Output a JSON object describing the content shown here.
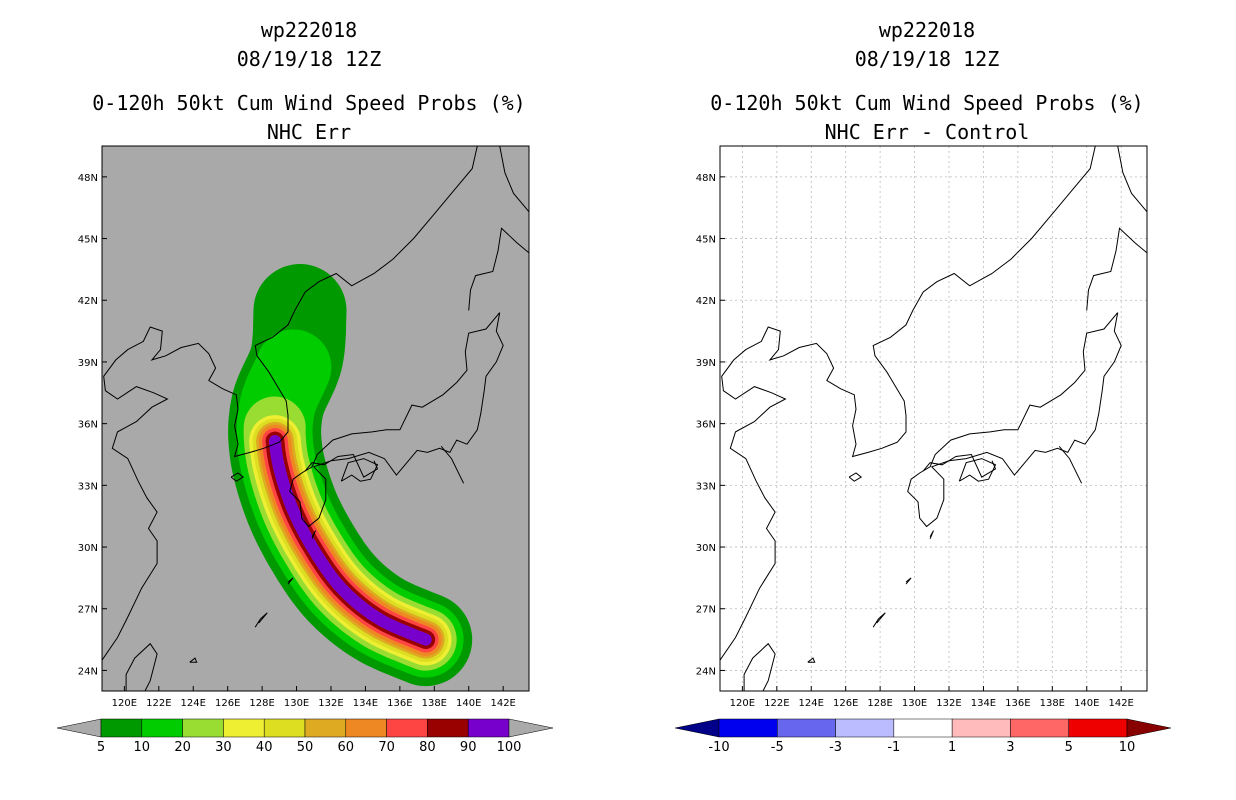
{
  "colors": {
    "land_bg": "#a9a9a9",
    "coast": "#000000",
    "prob_fills": [
      "#009900",
      "#00cc00",
      "#99dd33",
      "#eeee33",
      "#dddd22",
      "#ddaa22",
      "#ee8822",
      "#ff4444",
      "#990000",
      "#7700cc"
    ],
    "diff_fills": [
      "#000088",
      "#0000ee",
      "#6666ee",
      "#bbbbff",
      "#ffffff",
      "#ffbbbb",
      "#ff6666",
      "#ee0000",
      "#880000"
    ]
  },
  "chart_data": [
    {
      "type": "heatmap",
      "title_lines": [
        "wp222018",
        "08/19/18 12Z",
        "0-120h 50kt Cum Wind Speed Probs (%)",
        "NHC Err"
      ],
      "x_ticks": [
        "120E",
        "122E",
        "124E",
        "126E",
        "128E",
        "130E",
        "132E",
        "134E",
        "136E",
        "138E",
        "140E",
        "142E"
      ],
      "y_ticks": [
        "48N",
        "45N",
        "42N",
        "39N",
        "36N",
        "33N",
        "30N",
        "27N",
        "24N"
      ],
      "x_range_deg": [
        118.7,
        143.5
      ],
      "y_range_deg": [
        23.0,
        49.5
      ],
      "colorbar": {
        "labels": [
          "5",
          "10",
          "20",
          "30",
          "40",
          "50",
          "60",
          "70",
          "80",
          "90",
          "100"
        ],
        "levels": [
          5,
          10,
          20,
          30,
          40,
          50,
          60,
          70,
          80,
          90,
          100
        ]
      },
      "track_axis": [
        [
          130.2,
          41.5
        ],
        [
          130.0,
          39.2
        ],
        [
          128.9,
          36.9
        ],
        [
          128.8,
          34.7
        ],
        [
          129.6,
          32.2
        ],
        [
          130.9,
          30.0
        ],
        [
          132.6,
          28.0
        ],
        [
          134.8,
          26.5
        ],
        [
          137.5,
          25.5
        ]
      ],
      "contour_halfwidths_deg": [
        2.7,
        2.2,
        1.8,
        1.5,
        1.3,
        1.1,
        0.95,
        0.75,
        0.55,
        0.35
      ]
    },
    {
      "type": "heatmap",
      "title_lines": [
        "wp222018",
        "08/19/18 12Z",
        "0-120h 50kt Cum Wind Speed Probs (%)",
        "NHC Err - Control"
      ],
      "x_ticks": [
        "120E",
        "122E",
        "124E",
        "126E",
        "128E",
        "130E",
        "132E",
        "134E",
        "136E",
        "138E",
        "140E",
        "142E"
      ],
      "y_ticks": [
        "48N",
        "45N",
        "42N",
        "39N",
        "36N",
        "33N",
        "30N",
        "27N",
        "24N"
      ],
      "x_range_deg": [
        118.7,
        143.5
      ],
      "y_range_deg": [
        23.0,
        49.5
      ],
      "grid": true,
      "colorbar": {
        "labels": [
          "-10",
          "-5",
          "-3",
          "-1",
          "1",
          "3",
          "5",
          "10"
        ],
        "levels": [
          -10,
          -5,
          -3,
          -1,
          1,
          3,
          5,
          10
        ]
      }
    }
  ]
}
